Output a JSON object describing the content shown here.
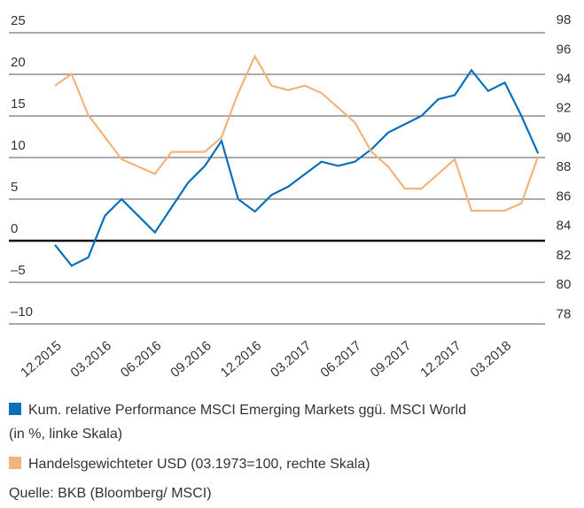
{
  "chart_data": {
    "type": "line",
    "x": [
      "12.2015",
      "01.2016",
      "02.2016",
      "03.2016",
      "04.2016",
      "05.2016",
      "06.2016",
      "07.2016",
      "08.2016",
      "09.2016",
      "10.2016",
      "11.2016",
      "12.2016",
      "01.2017",
      "02.2017",
      "03.2017",
      "04.2017",
      "05.2017",
      "06.2017",
      "07.2017",
      "08.2017",
      "09.2017",
      "10.2017",
      "11.2017",
      "12.2017",
      "01.2018",
      "02.2018",
      "03.2018",
      "04.2018",
      "05.2018"
    ],
    "xtick_every": 3,
    "series": [
      {
        "name": "Kum. relative Performance MSCI Emerging Markets ggü. MSCI World",
        "name_line2": "(in %, linke Skala)",
        "color": "#0a6fb8",
        "values": [
          -0.5,
          -3,
          -2,
          3,
          5,
          3,
          1,
          4,
          7,
          9,
          12,
          5,
          3.5,
          5.5,
          6.5,
          8,
          9.5,
          9,
          9.5,
          11,
          13,
          14,
          15,
          17,
          17.5,
          20.5,
          18,
          19,
          15,
          10.5
        ]
      },
      {
        "name": "Handelsgewichteter USD (03.1973=100, rechte Skala)",
        "color": "#f0b57a",
        "axis": "y2",
        "values": [
          93.5,
          94.3,
          91.5,
          90,
          88.5,
          88,
          87.5,
          89,
          89,
          89,
          90,
          93,
          95.5,
          93.5,
          93.2,
          93.5,
          93,
          92,
          91,
          89,
          88,
          86.5,
          86.5,
          87.5,
          88.5,
          85,
          85,
          85,
          85.5,
          88.7
        ]
      }
    ],
    "ylim": [
      -10,
      25
    ],
    "yticks": [
      -10,
      -5,
      0,
      5,
      10,
      15,
      20,
      25
    ],
    "yticks_display": [
      {
        "value": -10,
        "label": "–10"
      },
      {
        "value": -5,
        "label": "–5"
      }
    ],
    "y2lim": [
      77.3,
      97.1
    ],
    "y2ticks": [
      78,
      80,
      82,
      84,
      86,
      88,
      90,
      92,
      94,
      96,
      98
    ],
    "source": "Quelle: BKB (Bloomberg/ MSCI)"
  }
}
